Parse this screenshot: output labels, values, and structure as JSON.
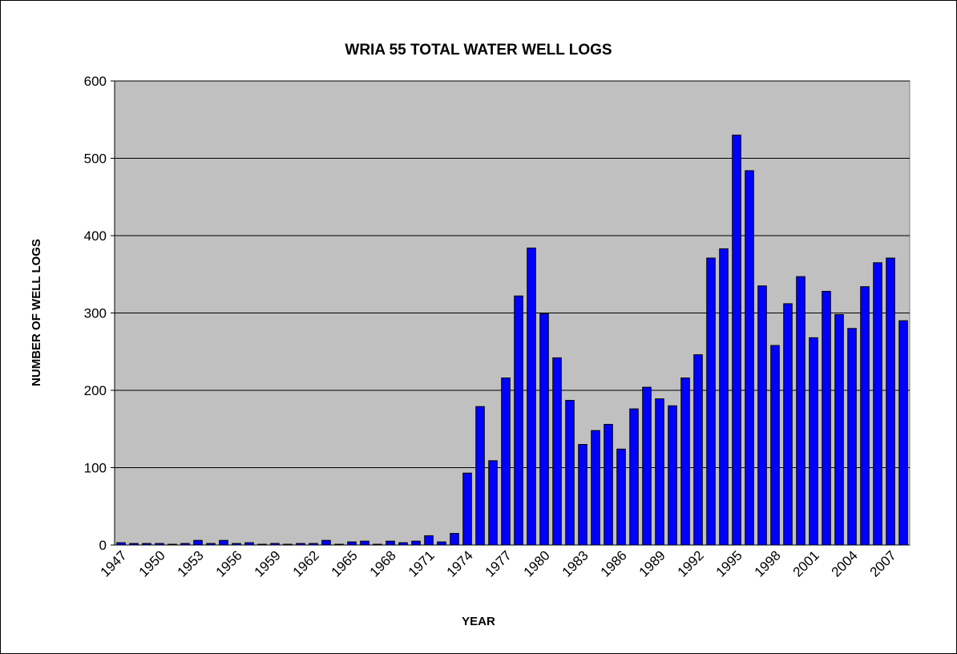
{
  "chart_data": {
    "type": "bar",
    "title": "WRIA 55 TOTAL WATER WELL LOGS",
    "x_label": "YEAR",
    "y_label": "NUMBER OF WELL LOGS",
    "categories": [
      "1947",
      null,
      null,
      "1950",
      null,
      null,
      "1953",
      null,
      null,
      "1956",
      null,
      null,
      "1959",
      null,
      null,
      "1962",
      null,
      null,
      "1965",
      null,
      null,
      "1968",
      null,
      null,
      "1971",
      null,
      null,
      "1974",
      null,
      null,
      "1977",
      null,
      null,
      "1980",
      null,
      null,
      "1983",
      null,
      null,
      "1986",
      null,
      null,
      "1989",
      null,
      null,
      "1992",
      null,
      null,
      "1995",
      null,
      null,
      "1998",
      null,
      null,
      "2001",
      null,
      null,
      "2004",
      null,
      null,
      "2007",
      null
    ],
    "values": [
      3,
      2,
      2,
      2,
      1,
      2,
      6,
      2,
      6,
      2,
      3,
      1,
      2,
      1,
      2,
      2,
      6,
      1,
      4,
      5,
      1,
      5,
      3,
      5,
      12,
      4,
      15,
      93,
      179,
      109,
      216,
      322,
      384,
      299,
      242,
      187,
      130,
      148,
      156,
      124,
      176,
      204,
      189,
      180,
      216,
      246,
      371,
      383,
      530,
      484,
      335,
      258,
      312,
      347,
      268,
      328,
      298,
      280,
      334,
      365,
      371,
      290
    ],
    "color": "#0000ff",
    "plot_background": "#c0c0c0",
    "ylim": [
      0,
      600
    ],
    "yticks": [
      0,
      100,
      200,
      300,
      400,
      500,
      600
    ],
    "grid": true
  }
}
